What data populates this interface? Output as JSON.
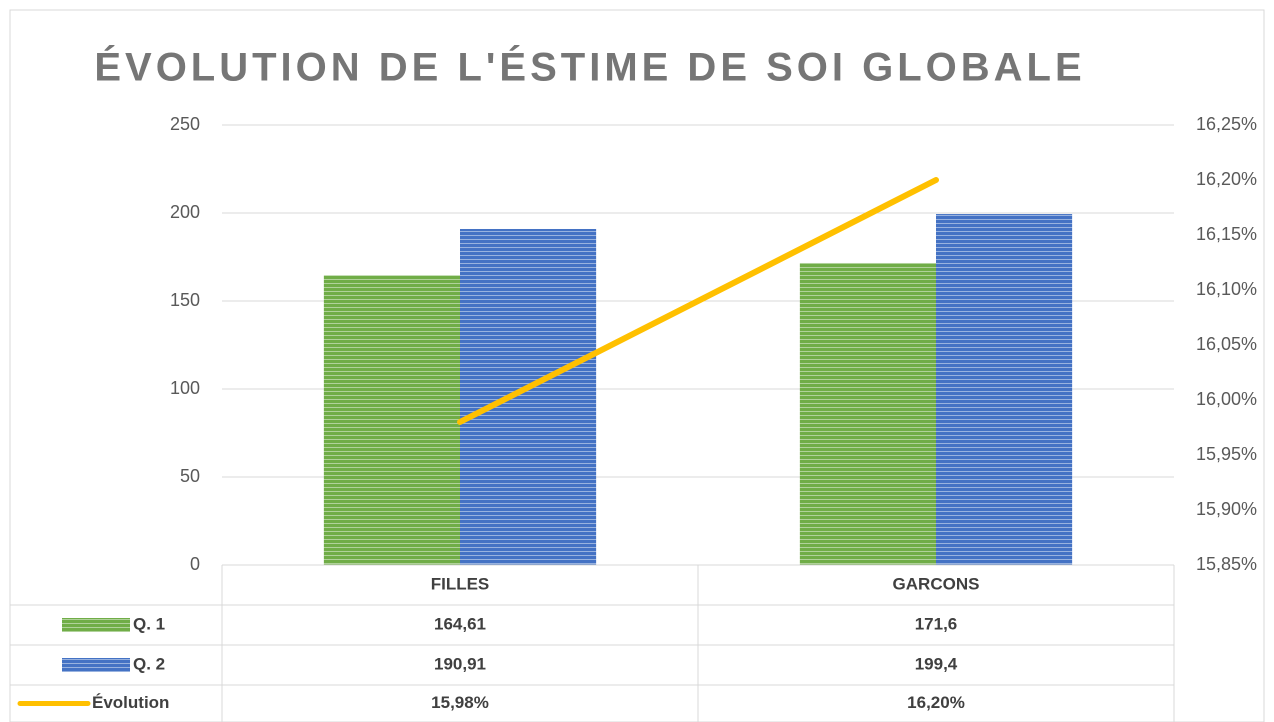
{
  "chart_data": {
    "type": "bar",
    "title": "ÉVOLUTION DE L'ÉSTIME DE SOI GLOBALE",
    "categories": [
      "FILLES",
      "GARCONS"
    ],
    "series": [
      {
        "name": "Q. 1",
        "type": "bar",
        "color": "#70ad47",
        "values": [
          164.61,
          171.6
        ],
        "value_labels": [
          "164,61",
          "171,6"
        ]
      },
      {
        "name": "Q. 2",
        "type": "bar",
        "color": "#4472c4",
        "values": [
          190.91,
          199.4
        ],
        "value_labels": [
          "190,91",
          "199,4"
        ]
      },
      {
        "name": "Évolution",
        "type": "line",
        "axis": "y2",
        "color": "#ffc000",
        "values": [
          15.98,
          16.2
        ],
        "value_labels": [
          "15,98%",
          "16,20%"
        ]
      }
    ],
    "ylim": [
      0,
      250
    ],
    "yticks": [
      0,
      50,
      100,
      150,
      200,
      250
    ],
    "y2lim": [
      15.85,
      16.25
    ],
    "y2ticks": [
      {
        "value": 15.85,
        "label": "15,85%"
      },
      {
        "value": 15.9,
        "label": "15,90%"
      },
      {
        "value": 15.95,
        "label": "15,95%"
      },
      {
        "value": 16.0,
        "label": "16,00%"
      },
      {
        "value": 16.05,
        "label": "16,05%"
      },
      {
        "value": 16.1,
        "label": "16,10%"
      },
      {
        "value": 16.15,
        "label": "16,15%"
      },
      {
        "value": 16.2,
        "label": "16,20%"
      },
      {
        "value": 16.25,
        "label": "16,25%"
      }
    ],
    "grid": true,
    "data_table": true
  }
}
